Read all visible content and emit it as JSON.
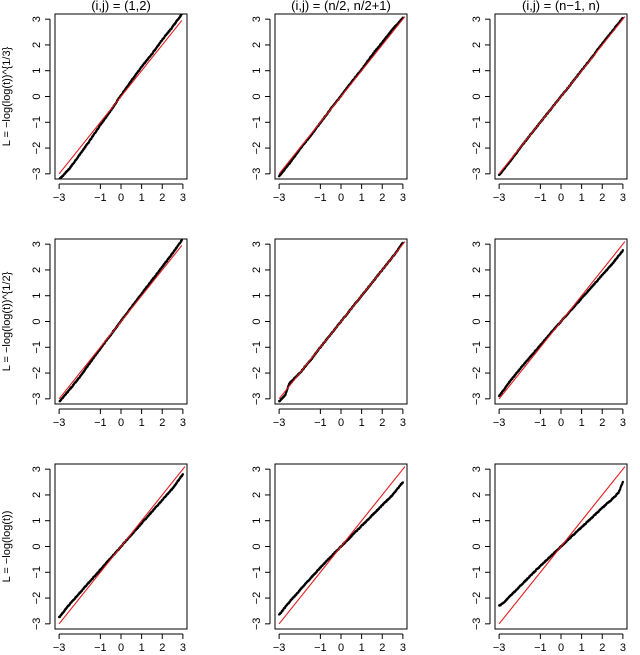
{
  "figure": {
    "column_titles": [
      "(i,j) = (1,2)",
      "(i,j) = (n/2, n/2+1)",
      "(i,j) = (n−1, n)"
    ],
    "row_ylabels": [
      "L = −log(log(t))^{1/3}",
      "L = −log(log(t))^{1/2}",
      "L = −log(log(t))"
    ],
    "colors": {
      "points": "#000000",
      "reference_line": "#e31a1c",
      "axes": "#000000"
    }
  },
  "chart_data": [
    {
      "type": "scatter",
      "panel": "row1-col1",
      "title": "(i,j) = (1,2)",
      "ylabel": "L = −log(log(t))^{1/3}",
      "xlim": [
        -3.2,
        3.2
      ],
      "ylim": [
        -3.2,
        3.2
      ],
      "xticks": [
        -3,
        -1,
        0,
        1,
        2,
        3
      ],
      "xtick_labels": [
        "−3",
        "−1",
        "0",
        "1",
        "2",
        "3"
      ],
      "yticks": [
        -3,
        -2,
        -1,
        0,
        1,
        2,
        3
      ],
      "ytick_labels": [
        "−3",
        "−2",
        "−1",
        "0",
        "1",
        "2",
        "3"
      ],
      "reference_line": {
        "intercept": 0,
        "slope": 1,
        "x_range": [
          -3,
          2.95
        ]
      },
      "points": [
        [
          -2.97,
          -3.2
        ],
        [
          -2.5,
          -2.8
        ],
        [
          -2.0,
          -2.25
        ],
        [
          -1.5,
          -1.7
        ],
        [
          -1.0,
          -1.1
        ],
        [
          -0.5,
          -0.55
        ],
        [
          0.0,
          0.05
        ],
        [
          0.5,
          0.6
        ],
        [
          1.0,
          1.15
        ],
        [
          1.5,
          1.65
        ],
        [
          2.0,
          2.2
        ],
        [
          2.5,
          2.7
        ],
        [
          2.95,
          3.2
        ]
      ]
    },
    {
      "type": "scatter",
      "panel": "row1-col2",
      "title": "(i,j) = (n/2, n/2+1)",
      "ylabel": "",
      "xlim": [
        -3.2,
        3.2
      ],
      "ylim": [
        -3.2,
        3.2
      ],
      "xticks": [
        -3,
        -1,
        0,
        1,
        2,
        3
      ],
      "xtick_labels": [
        "−3",
        "−1",
        "0",
        "1",
        "2",
        "3"
      ],
      "yticks": [
        -3,
        -2,
        -1,
        0,
        1,
        2,
        3
      ],
      "ytick_labels": [
        "−3",
        "−2",
        "−1",
        "0",
        "1",
        "2",
        "3"
      ],
      "reference_line": {
        "intercept": 0,
        "slope": 1,
        "x_range": [
          -3,
          3.1
        ]
      },
      "points": [
        [
          -3.0,
          -3.1
        ],
        [
          -2.5,
          -2.6
        ],
        [
          -2.0,
          -2.05
        ],
        [
          -1.5,
          -1.55
        ],
        [
          -1.0,
          -1.02
        ],
        [
          -0.5,
          -0.48
        ],
        [
          0.0,
          0.02
        ],
        [
          0.5,
          0.55
        ],
        [
          1.0,
          1.05
        ],
        [
          1.5,
          1.6
        ],
        [
          2.0,
          2.1
        ],
        [
          2.5,
          2.6
        ],
        [
          3.0,
          3.05
        ]
      ]
    },
    {
      "type": "scatter",
      "panel": "row1-col3",
      "title": "(i,j) = (n−1, n)",
      "ylabel": "",
      "xlim": [
        -3.2,
        3.2
      ],
      "ylim": [
        -3.2,
        3.2
      ],
      "xticks": [
        -3,
        -1,
        0,
        1,
        2,
        3
      ],
      "xtick_labels": [
        "−3",
        "−1",
        "0",
        "1",
        "2",
        "3"
      ],
      "yticks": [
        -3,
        -2,
        -1,
        0,
        1,
        2,
        3
      ],
      "ytick_labels": [
        "−3",
        "−2",
        "−1",
        "0",
        "1",
        "2",
        "3"
      ],
      "reference_line": {
        "intercept": 0,
        "slope": 1,
        "x_range": [
          -3,
          3.1
        ]
      },
      "points": [
        [
          -3.0,
          -3.05
        ],
        [
          -2.5,
          -2.55
        ],
        [
          -2.0,
          -2.02
        ],
        [
          -1.5,
          -1.5
        ],
        [
          -1.0,
          -1.0
        ],
        [
          -0.5,
          -0.5
        ],
        [
          0.0,
          0.0
        ],
        [
          0.5,
          0.5
        ],
        [
          1.0,
          1.02
        ],
        [
          1.5,
          1.52
        ],
        [
          2.0,
          2.05
        ],
        [
          2.5,
          2.55
        ],
        [
          3.0,
          3.05
        ]
      ]
    },
    {
      "type": "scatter",
      "panel": "row2-col1",
      "title": "",
      "ylabel": "L = −log(log(t))^{1/2}",
      "xlim": [
        -3.2,
        3.2
      ],
      "ylim": [
        -3.2,
        3.2
      ],
      "xticks": [
        -3,
        -1,
        0,
        1,
        2,
        3
      ],
      "xtick_labels": [
        "−3",
        "−1",
        "0",
        "1",
        "2",
        "3"
      ],
      "yticks": [
        -3,
        -2,
        -1,
        0,
        1,
        2,
        3
      ],
      "ytick_labels": [
        "−3",
        "−2",
        "−1",
        "0",
        "1",
        "2",
        "3"
      ],
      "reference_line": {
        "intercept": 0,
        "slope": 1,
        "x_range": [
          -3,
          2.95
        ]
      },
      "points": [
        [
          -2.97,
          -3.1
        ],
        [
          -2.5,
          -2.65
        ],
        [
          -2.0,
          -2.15
        ],
        [
          -1.5,
          -1.6
        ],
        [
          -1.0,
          -1.05
        ],
        [
          -0.5,
          -0.52
        ],
        [
          0.0,
          0.02
        ],
        [
          0.5,
          0.55
        ],
        [
          1.0,
          1.08
        ],
        [
          1.5,
          1.6
        ],
        [
          2.0,
          2.12
        ],
        [
          2.5,
          2.65
        ],
        [
          2.95,
          3.15
        ]
      ]
    },
    {
      "type": "scatter",
      "panel": "row2-col2",
      "title": "",
      "ylabel": "",
      "xlim": [
        -3.2,
        3.2
      ],
      "ylim": [
        -3.2,
        3.2
      ],
      "xticks": [
        -3,
        -1,
        0,
        1,
        2,
        3
      ],
      "xtick_labels": [
        "−3",
        "−1",
        "0",
        "1",
        "2",
        "3"
      ],
      "yticks": [
        -3,
        -2,
        -1,
        0,
        1,
        2,
        3
      ],
      "ytick_labels": [
        "−3",
        "−2",
        "−1",
        "0",
        "1",
        "2",
        "3"
      ],
      "reference_line": {
        "intercept": 0,
        "slope": 1,
        "x_range": [
          -3,
          3.1
        ]
      },
      "points": [
        [
          -3.0,
          -3.1
        ],
        [
          -2.7,
          -2.85
        ],
        [
          -2.5,
          -2.4
        ],
        [
          -2.0,
          -2.0
        ],
        [
          -1.5,
          -1.52
        ],
        [
          -1.0,
          -1.0
        ],
        [
          -0.5,
          -0.5
        ],
        [
          0.0,
          0.0
        ],
        [
          0.5,
          0.5
        ],
        [
          1.0,
          1.0
        ],
        [
          1.5,
          1.5
        ],
        [
          2.0,
          2.0
        ],
        [
          2.5,
          2.5
        ],
        [
          3.0,
          3.05
        ]
      ]
    },
    {
      "type": "scatter",
      "panel": "row2-col3",
      "title": "",
      "ylabel": "",
      "xlim": [
        -3.2,
        3.2
      ],
      "ylim": [
        -3.2,
        3.2
      ],
      "xticks": [
        -3,
        -1,
        0,
        1,
        2,
        3
      ],
      "xtick_labels": [
        "−3",
        "−1",
        "0",
        "1",
        "2",
        "3"
      ],
      "yticks": [
        -3,
        -2,
        -1,
        0,
        1,
        2,
        3
      ],
      "ytick_labels": [
        "−3",
        "−2",
        "−1",
        "0",
        "1",
        "2",
        "3"
      ],
      "reference_line": {
        "intercept": 0,
        "slope": 1,
        "x_range": [
          -3,
          3.1
        ]
      },
      "points": [
        [
          -3.0,
          -2.9
        ],
        [
          -2.5,
          -2.35
        ],
        [
          -2.0,
          -1.85
        ],
        [
          -1.5,
          -1.38
        ],
        [
          -1.0,
          -0.92
        ],
        [
          -0.5,
          -0.45
        ],
        [
          0.0,
          0.0
        ],
        [
          0.5,
          0.45
        ],
        [
          1.0,
          0.9
        ],
        [
          1.5,
          1.35
        ],
        [
          2.0,
          1.8
        ],
        [
          2.5,
          2.25
        ],
        [
          3.0,
          2.75
        ]
      ]
    },
    {
      "type": "scatter",
      "panel": "row3-col1",
      "title": "",
      "ylabel": "L = −log(log(t))",
      "xlim": [
        -3.2,
        3.2
      ],
      "ylim": [
        -3.2,
        3.2
      ],
      "xticks": [
        -3,
        -1,
        0,
        1,
        2,
        3
      ],
      "xtick_labels": [
        "−3",
        "−1",
        "0",
        "1",
        "2",
        "3"
      ],
      "yticks": [
        -3,
        -2,
        -1,
        0,
        1,
        2,
        3
      ],
      "ytick_labels": [
        "−3",
        "−2",
        "−1",
        "0",
        "1",
        "2",
        "3"
      ],
      "reference_line": {
        "intercept": 0,
        "slope": 1,
        "x_range": [
          -3,
          3.1
        ]
      },
      "points": [
        [
          -3.0,
          -2.75
        ],
        [
          -2.5,
          -2.25
        ],
        [
          -2.0,
          -1.8
        ],
        [
          -1.5,
          -1.35
        ],
        [
          -1.0,
          -0.9
        ],
        [
          -0.5,
          -0.45
        ],
        [
          0.0,
          0.0
        ],
        [
          0.5,
          0.45
        ],
        [
          1.0,
          0.9
        ],
        [
          1.5,
          1.35
        ],
        [
          2.0,
          1.8
        ],
        [
          2.5,
          2.25
        ],
        [
          3.0,
          2.8
        ]
      ]
    },
    {
      "type": "scatter",
      "panel": "row3-col2",
      "title": "",
      "ylabel": "",
      "xlim": [
        -3.2,
        3.2
      ],
      "ylim": [
        -3.2,
        3.2
      ],
      "xticks": [
        -3,
        -1,
        0,
        1,
        2,
        3
      ],
      "xtick_labels": [
        "−3",
        "−1",
        "0",
        "1",
        "2",
        "3"
      ],
      "yticks": [
        -3,
        -2,
        -1,
        0,
        1,
        2,
        3
      ],
      "ytick_labels": [
        "−3",
        "−2",
        "−1",
        "0",
        "1",
        "2",
        "3"
      ],
      "reference_line": {
        "intercept": 0,
        "slope": 1,
        "x_range": [
          -3,
          3.1
        ]
      },
      "points": [
        [
          -3.0,
          -2.65
        ],
        [
          -2.5,
          -2.15
        ],
        [
          -2.0,
          -1.7
        ],
        [
          -1.5,
          -1.25
        ],
        [
          -1.0,
          -0.82
        ],
        [
          -0.5,
          -0.4
        ],
        [
          0.0,
          0.0
        ],
        [
          0.5,
          0.4
        ],
        [
          1.0,
          0.8
        ],
        [
          1.5,
          1.2
        ],
        [
          2.0,
          1.6
        ],
        [
          2.5,
          2.0
        ],
        [
          3.0,
          2.5
        ]
      ]
    },
    {
      "type": "scatter",
      "panel": "row3-col3",
      "title": "",
      "ylabel": "",
      "xlim": [
        -3.2,
        3.2
      ],
      "ylim": [
        -3.2,
        3.2
      ],
      "xticks": [
        -3,
        -1,
        0,
        1,
        2,
        3
      ],
      "xtick_labels": [
        "−3",
        "−1",
        "0",
        "1",
        "2",
        "3"
      ],
      "yticks": [
        -3,
        -2,
        -1,
        0,
        1,
        2,
        3
      ],
      "ytick_labels": [
        "−3",
        "−2",
        "−1",
        "0",
        "1",
        "2",
        "3"
      ],
      "reference_line": {
        "intercept": 0,
        "slope": 1,
        "x_range": [
          -3,
          3.1
        ]
      },
      "points": [
        [
          -3.0,
          -2.3
        ],
        [
          -2.8,
          -2.2
        ],
        [
          -2.5,
          -1.95
        ],
        [
          -2.0,
          -1.55
        ],
        [
          -1.5,
          -1.15
        ],
        [
          -1.0,
          -0.75
        ],
        [
          -0.5,
          -0.38
        ],
        [
          0.0,
          0.0
        ],
        [
          0.5,
          0.38
        ],
        [
          1.0,
          0.75
        ],
        [
          1.5,
          1.12
        ],
        [
          2.0,
          1.5
        ],
        [
          2.5,
          1.85
        ],
        [
          2.8,
          2.1
        ],
        [
          3.0,
          2.5
        ]
      ]
    }
  ]
}
